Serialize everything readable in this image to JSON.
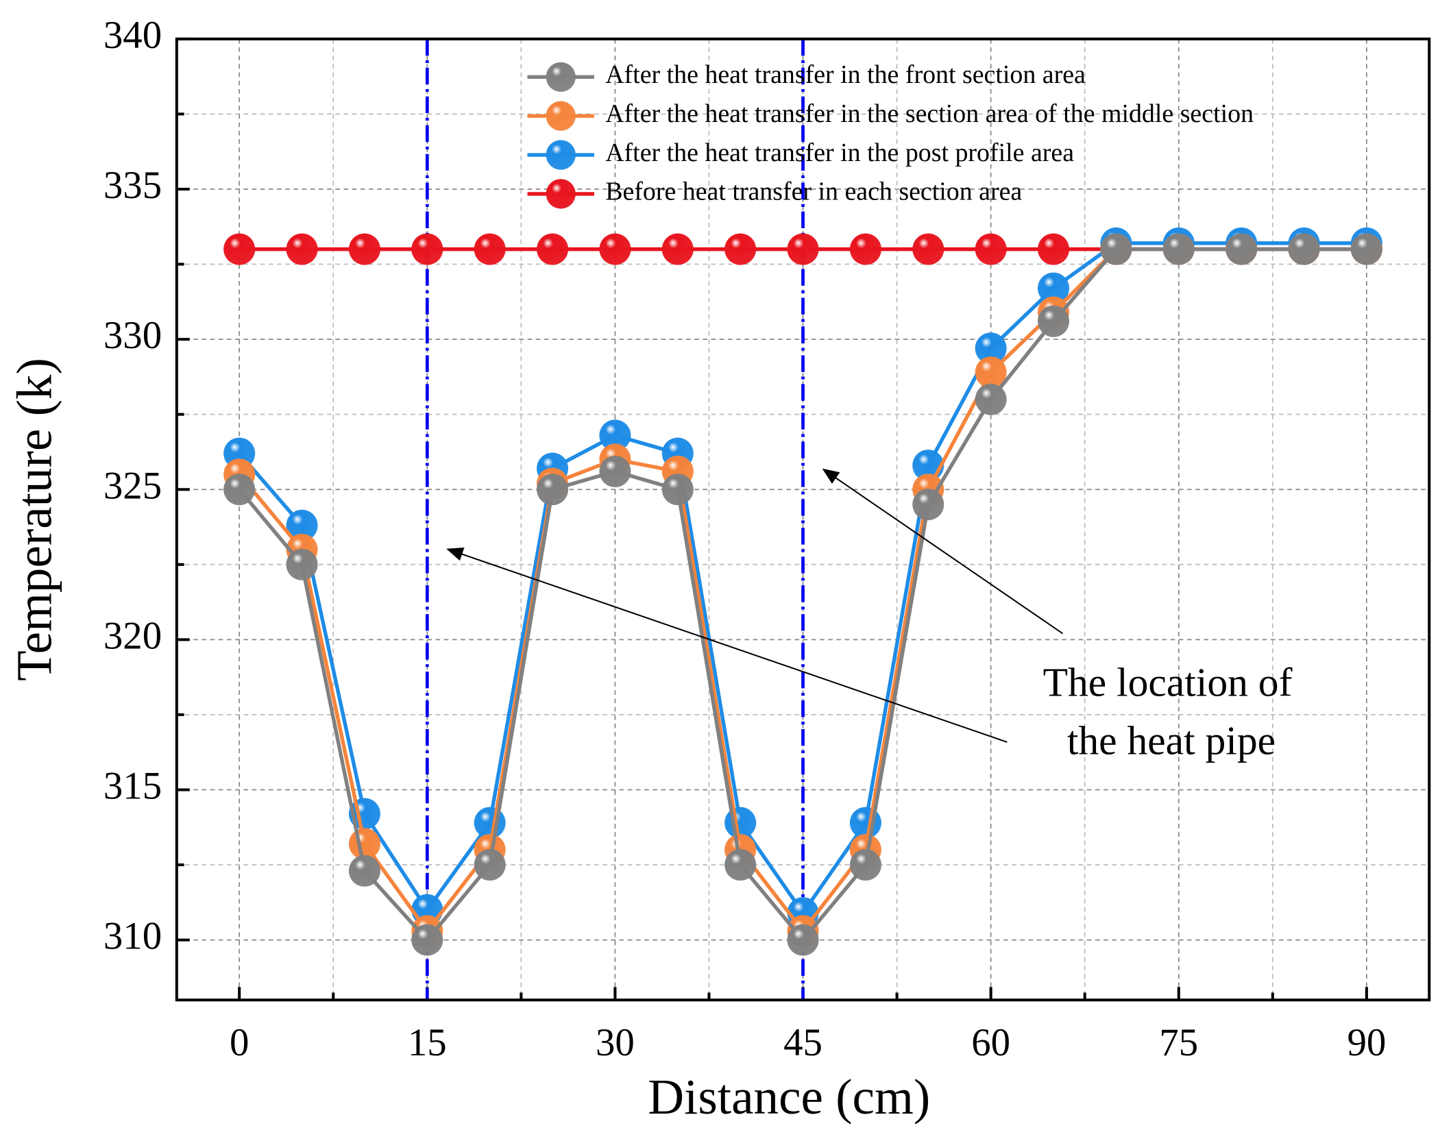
{
  "chart_data": {
    "type": "line",
    "xlabel": "Distance (cm)",
    "ylabel": "Temperature (k)",
    "x": [
      0,
      5,
      10,
      15,
      20,
      25,
      30,
      35,
      40,
      45,
      50,
      55,
      60,
      65,
      70,
      75,
      80,
      85,
      90
    ],
    "series": [
      {
        "name": "After the heat transfer in the front section area",
        "color": "#808080",
        "values": [
          325,
          322.5,
          312.3,
          310,
          312.5,
          325,
          325.6,
          325,
          312.5,
          310,
          312.5,
          324.5,
          328,
          330.6,
          333,
          333,
          333,
          333,
          333
        ]
      },
      {
        "name": "After the heat transfer in the section area of the middle section",
        "color": "#f5843c",
        "values": [
          325.5,
          323,
          313.2,
          310.3,
          313,
          325.2,
          326,
          325.6,
          313,
          310.3,
          313,
          325,
          328.9,
          330.9,
          333,
          333,
          333,
          333,
          333
        ]
      },
      {
        "name": "After the heat transfer in the post profile area",
        "color": "#1e8ce6",
        "values": [
          326.2,
          323.8,
          314.2,
          311,
          313.9,
          325.7,
          326.8,
          326.2,
          313.9,
          310.9,
          313.9,
          325.8,
          329.7,
          331.7,
          333.2,
          333.2,
          333.2,
          333.2,
          333.2
        ]
      },
      {
        "name": "Before heat transfer in each section area",
        "color": "#e8141e",
        "values": [
          333,
          333,
          333,
          333,
          333,
          333,
          333,
          333,
          333,
          333,
          333,
          333,
          333,
          333,
          333,
          333,
          333,
          333,
          333
        ]
      }
    ],
    "xlim": [
      -5,
      95
    ],
    "xticks": [
      0,
      15,
      30,
      45,
      60,
      75,
      90
    ],
    "xminorticks": [
      7.5,
      22.5,
      37.5,
      52.5,
      67.5,
      82.5
    ],
    "ylim": [
      308,
      340
    ],
    "yticks": [
      310,
      315,
      320,
      325,
      330,
      335,
      340
    ],
    "yminorticks": [
      312.5,
      317.5,
      322.5,
      327.5,
      332.5,
      337.5
    ],
    "grid": true,
    "legend": "upper right",
    "vlines": [
      15,
      45
    ],
    "vline_color": "#0000ee",
    "annotation": [
      "The location of",
      "the heat pipe"
    ]
  }
}
